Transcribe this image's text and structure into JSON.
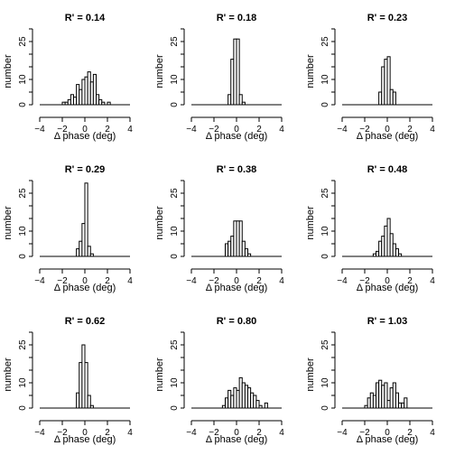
{
  "figure": {
    "colors": {
      "stroke": "#000000",
      "bar_fill": "#ffffff",
      "background": "#ffffff"
    }
  },
  "chart_data": [
    {
      "type": "bar",
      "title": "R' = 0.14",
      "xlabel": "Δ phase (deg)",
      "ylabel": "number",
      "xlim": [
        -4,
        4
      ],
      "ylim": [
        0,
        30
      ],
      "xticks": [
        -4,
        -2,
        0,
        2,
        4
      ],
      "yticks": [
        0,
        10,
        25
      ],
      "bin_width": 0.25,
      "bins": [
        [
          -2.0,
          1
        ],
        [
          -1.75,
          1
        ],
        [
          -1.5,
          2
        ],
        [
          -1.25,
          4
        ],
        [
          -1.0,
          3
        ],
        [
          -0.75,
          8
        ],
        [
          -0.5,
          6
        ],
        [
          -0.25,
          10
        ],
        [
          0.0,
          11
        ],
        [
          0.25,
          13
        ],
        [
          0.5,
          9
        ],
        [
          0.75,
          12
        ],
        [
          1.0,
          4
        ],
        [
          1.25,
          2
        ],
        [
          1.5,
          1
        ],
        [
          1.75,
          0
        ],
        [
          2.0,
          1
        ]
      ]
    },
    {
      "type": "bar",
      "title": "R' = 0.18",
      "xlabel": "Δ phase (deg)",
      "ylabel": "number",
      "xlim": [
        -4,
        4
      ],
      "ylim": [
        0,
        30
      ],
      "xticks": [
        -4,
        -2,
        0,
        2,
        4
      ],
      "yticks": [
        0,
        10,
        25
      ],
      "bin_width": 0.25,
      "bins": [
        [
          -0.75,
          4
        ],
        [
          -0.5,
          18
        ],
        [
          -0.25,
          26
        ],
        [
          0.0,
          26
        ],
        [
          0.25,
          4
        ],
        [
          0.5,
          1
        ]
      ]
    },
    {
      "type": "bar",
      "title": "R' = 0.23",
      "xlabel": "Δ phase (deg)",
      "ylabel": "number",
      "xlim": [
        -4,
        4
      ],
      "ylim": [
        0,
        30
      ],
      "xticks": [
        -4,
        -2,
        0,
        2,
        4
      ],
      "yticks": [
        0,
        10,
        25
      ],
      "bin_width": 0.25,
      "bins": [
        [
          -0.75,
          5
        ],
        [
          -0.5,
          15
        ],
        [
          -0.25,
          18
        ],
        [
          0.0,
          19
        ],
        [
          0.25,
          6
        ],
        [
          0.5,
          5
        ]
      ]
    },
    {
      "type": "bar",
      "title": "R' = 0.29",
      "xlabel": "Δ phase (deg)",
      "ylabel": "number",
      "xlim": [
        -4,
        4
      ],
      "ylim": [
        0,
        30
      ],
      "xticks": [
        -4,
        -2,
        0,
        2,
        4
      ],
      "yticks": [
        0,
        10,
        25
      ],
      "bin_width": 0.25,
      "bins": [
        [
          -0.75,
          3
        ],
        [
          -0.5,
          6
        ],
        [
          -0.25,
          13
        ],
        [
          0.0,
          29
        ],
        [
          0.25,
          4
        ],
        [
          0.5,
          1
        ]
      ]
    },
    {
      "type": "bar",
      "title": "R' = 0.38",
      "xlabel": "Δ phase (deg)",
      "ylabel": "number",
      "xlim": [
        -4,
        4
      ],
      "ylim": [
        0,
        30
      ],
      "xticks": [
        -4,
        -2,
        0,
        2,
        4
      ],
      "yticks": [
        0,
        10,
        25
      ],
      "bin_width": 0.25,
      "bins": [
        [
          -1.0,
          5
        ],
        [
          -0.75,
          6
        ],
        [
          -0.5,
          8
        ],
        [
          -0.25,
          14
        ],
        [
          0.0,
          14
        ],
        [
          0.25,
          14
        ],
        [
          0.5,
          6
        ],
        [
          0.75,
          3
        ],
        [
          1.0,
          1
        ]
      ]
    },
    {
      "type": "bar",
      "title": "R' = 0.48",
      "xlabel": "Δ phase (deg)",
      "ylabel": "number",
      "xlim": [
        -4,
        4
      ],
      "ylim": [
        0,
        30
      ],
      "xticks": [
        -4,
        -2,
        0,
        2,
        4
      ],
      "yticks": [
        0,
        10,
        25
      ],
      "bin_width": 0.25,
      "bins": [
        [
          -1.25,
          1
        ],
        [
          -1.0,
          2
        ],
        [
          -0.75,
          6
        ],
        [
          -0.5,
          8
        ],
        [
          -0.25,
          12
        ],
        [
          0.0,
          15
        ],
        [
          0.25,
          9
        ],
        [
          0.5,
          5
        ],
        [
          0.75,
          3
        ],
        [
          1.0,
          1
        ]
      ]
    },
    {
      "type": "bar",
      "title": "R' = 0.62",
      "xlabel": "Δ phase (deg)",
      "ylabel": "number",
      "xlim": [
        -4,
        4
      ],
      "ylim": [
        0,
        30
      ],
      "xticks": [
        -4,
        -2,
        0,
        2,
        4
      ],
      "yticks": [
        0,
        10,
        25
      ],
      "bin_width": 0.25,
      "bins": [
        [
          -0.75,
          6
        ],
        [
          -0.5,
          18
        ],
        [
          -0.25,
          25
        ],
        [
          0.0,
          18
        ],
        [
          0.25,
          5
        ],
        [
          0.5,
          1
        ]
      ]
    },
    {
      "type": "bar",
      "title": "R' = 0.80",
      "xlabel": "Δ phase (deg)",
      "ylabel": "number",
      "xlim": [
        -4,
        4
      ],
      "ylim": [
        0,
        30
      ],
      "xticks": [
        -4,
        -2,
        0,
        2,
        4
      ],
      "yticks": [
        0,
        10,
        25
      ],
      "bin_width": 0.25,
      "bins": [
        [
          -1.25,
          1
        ],
        [
          -1.0,
          4
        ],
        [
          -0.75,
          7
        ],
        [
          -0.5,
          5
        ],
        [
          -0.25,
          8
        ],
        [
          0.0,
          7
        ],
        [
          0.25,
          12
        ],
        [
          0.5,
          10
        ],
        [
          0.75,
          9
        ],
        [
          1.0,
          8
        ],
        [
          1.25,
          6
        ],
        [
          1.5,
          5
        ],
        [
          1.75,
          3
        ],
        [
          2.0,
          1
        ],
        [
          2.5,
          2
        ]
      ]
    },
    {
      "type": "bar",
      "title": "R' = 1.03",
      "xlabel": "Δ phase (deg)",
      "ylabel": "number",
      "xlim": [
        -4,
        4
      ],
      "ylim": [
        0,
        30
      ],
      "xticks": [
        -4,
        -2,
        0,
        2,
        4
      ],
      "yticks": [
        0,
        10,
        25
      ],
      "bin_width": 0.25,
      "bins": [
        [
          -2.0,
          1
        ],
        [
          -1.75,
          4
        ],
        [
          -1.5,
          6
        ],
        [
          -1.25,
          5
        ],
        [
          -1.0,
          10
        ],
        [
          -0.75,
          11
        ],
        [
          -0.5,
          9
        ],
        [
          -0.25,
          10
        ],
        [
          0.0,
          3
        ],
        [
          0.25,
          8
        ],
        [
          0.5,
          10
        ],
        [
          0.75,
          6
        ],
        [
          1.0,
          2
        ],
        [
          1.25,
          2
        ],
        [
          1.5,
          4
        ]
      ]
    }
  ]
}
